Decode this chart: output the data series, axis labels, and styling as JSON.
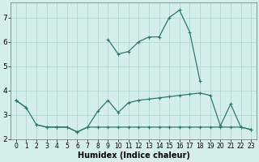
{
  "xlabel": "Humidex (Indice chaleur)",
  "x_values": [
    0,
    1,
    2,
    3,
    4,
    5,
    6,
    7,
    8,
    9,
    10,
    11,
    12,
    13,
    14,
    15,
    16,
    17,
    18,
    19,
    20,
    21,
    22,
    23
  ],
  "line_main": [
    3.6,
    3.3,
    null,
    null,
    null,
    null,
    null,
    null,
    null,
    6.1,
    5.5,
    5.6,
    6.0,
    6.2,
    6.2,
    7.0,
    7.3,
    6.4,
    4.4,
    null,
    null,
    null,
    null,
    null
  ],
  "line_mid": [
    3.6,
    3.3,
    2.6,
    2.5,
    2.5,
    2.5,
    2.3,
    2.5,
    3.15,
    3.6,
    3.1,
    3.5,
    3.6,
    3.65,
    3.7,
    3.75,
    3.8,
    3.85,
    3.9,
    3.8,
    2.55,
    3.45,
    2.5,
    2.4
  ],
  "line_low": [
    null,
    null,
    2.6,
    2.5,
    2.5,
    2.5,
    2.3,
    2.5,
    2.5,
    2.5,
    2.5,
    2.5,
    2.5,
    2.5,
    2.5,
    2.5,
    2.5,
    2.5,
    2.5,
    2.5,
    2.5,
    2.5,
    2.5,
    2.4
  ],
  "line_color": "#2a7a6a",
  "bg_color": "#d4eeed",
  "grid_color": "#aed4d0",
  "ylim": [
    2.0,
    7.6
  ],
  "xlim": [
    -0.5,
    23.5
  ],
  "yticks": [
    2,
    3,
    4,
    5,
    6,
    7
  ],
  "xtick_labels": [
    "0",
    "1",
    "2",
    "3",
    "4",
    "5",
    "6",
    "7",
    "8",
    "9",
    "10",
    "11",
    "12",
    "13",
    "14",
    "15",
    "16",
    "17",
    "18",
    "19",
    "20",
    "21",
    "22",
    "23"
  ]
}
